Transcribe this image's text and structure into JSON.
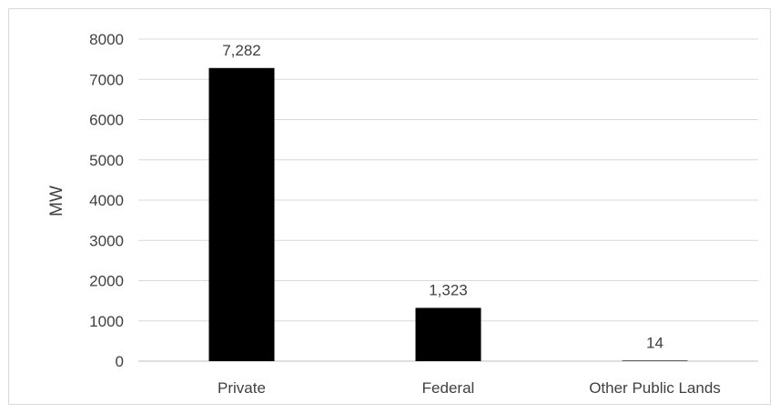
{
  "chart_data": {
    "type": "bar",
    "title": "",
    "xlabel": "",
    "ylabel": "MW",
    "categories": [
      "Private",
      "Federal",
      "Other Public Lands"
    ],
    "values": [
      7282,
      1323,
      14
    ],
    "data_labels": [
      "7,282",
      "1,323",
      "14"
    ],
    "ylim": [
      0,
      8000
    ],
    "yticks": [
      0,
      1000,
      2000,
      3000,
      4000,
      5000,
      6000,
      7000,
      8000
    ],
    "grid": true,
    "legend": "none",
    "bar_color": "#000000",
    "gridline_color": "#d9d9d9"
  }
}
